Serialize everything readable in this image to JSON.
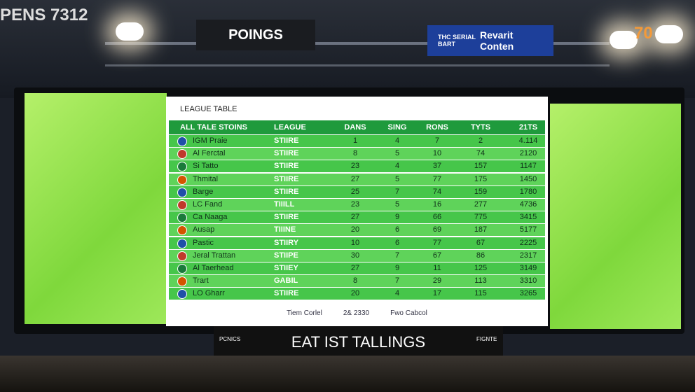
{
  "signs": {
    "left": "PENS 7312",
    "center": "POINGS",
    "right_small": "THC SERIAL BART",
    "right_large": "Revarit Conten",
    "far_right": "70"
  },
  "table": {
    "title": "LEAGUE TABLE",
    "headers": [
      "ALL TALE STOINS",
      "LEAGUE",
      "DANS",
      "SING",
      "RONS",
      "TYTS",
      "21TS"
    ],
    "rows": [
      [
        "IGM Praie",
        "STIIRE",
        "1",
        "4",
        "7",
        "2",
        "4.114"
      ],
      [
        "Al Ferctal",
        "STIIRE",
        "8",
        "5",
        "10",
        "74",
        "2120"
      ],
      [
        "Si Tatto",
        "STIIRE",
        "23",
        "4",
        "37",
        "157",
        "1147"
      ],
      [
        "Thmital",
        "STIIRE",
        "27",
        "5",
        "77",
        "175",
        "1450"
      ],
      [
        "Barge",
        "STIIRE",
        "25",
        "7",
        "74",
        "159",
        "1780"
      ],
      [
        "LC Fand",
        "TIIILL",
        "23",
        "5",
        "16",
        "277",
        "4736"
      ],
      [
        "Ca Naaga",
        "STIIRE",
        "27",
        "9",
        "66",
        "775",
        "3415"
      ],
      [
        "Ausap",
        "TIIINE",
        "20",
        "6",
        "69",
        "187",
        "5177"
      ],
      [
        "Pastic",
        "STIIRY",
        "10",
        "6",
        "77",
        "67",
        "2225"
      ],
      [
        "Jeral Trattan",
        "STIIPE",
        "30",
        "7",
        "67",
        "86",
        "2317"
      ],
      [
        "Al Taerhead",
        "STIIEY",
        "27",
        "9",
        "11",
        "125",
        "3149"
      ],
      [
        "Trart",
        "GABIL",
        "8",
        "7",
        "29",
        "113",
        "3310"
      ],
      [
        "LO Gharr",
        "STIIRE",
        "20",
        "4",
        "17",
        "115",
        "3265"
      ]
    ],
    "footer": [
      "Tiem Corlel",
      "2& 2330",
      "Fwo Cabcol"
    ]
  },
  "banner": {
    "title": "EAT IST TALLINGS",
    "left_logo": "PCNICS",
    "right_logo": "FIGNTE"
  }
}
